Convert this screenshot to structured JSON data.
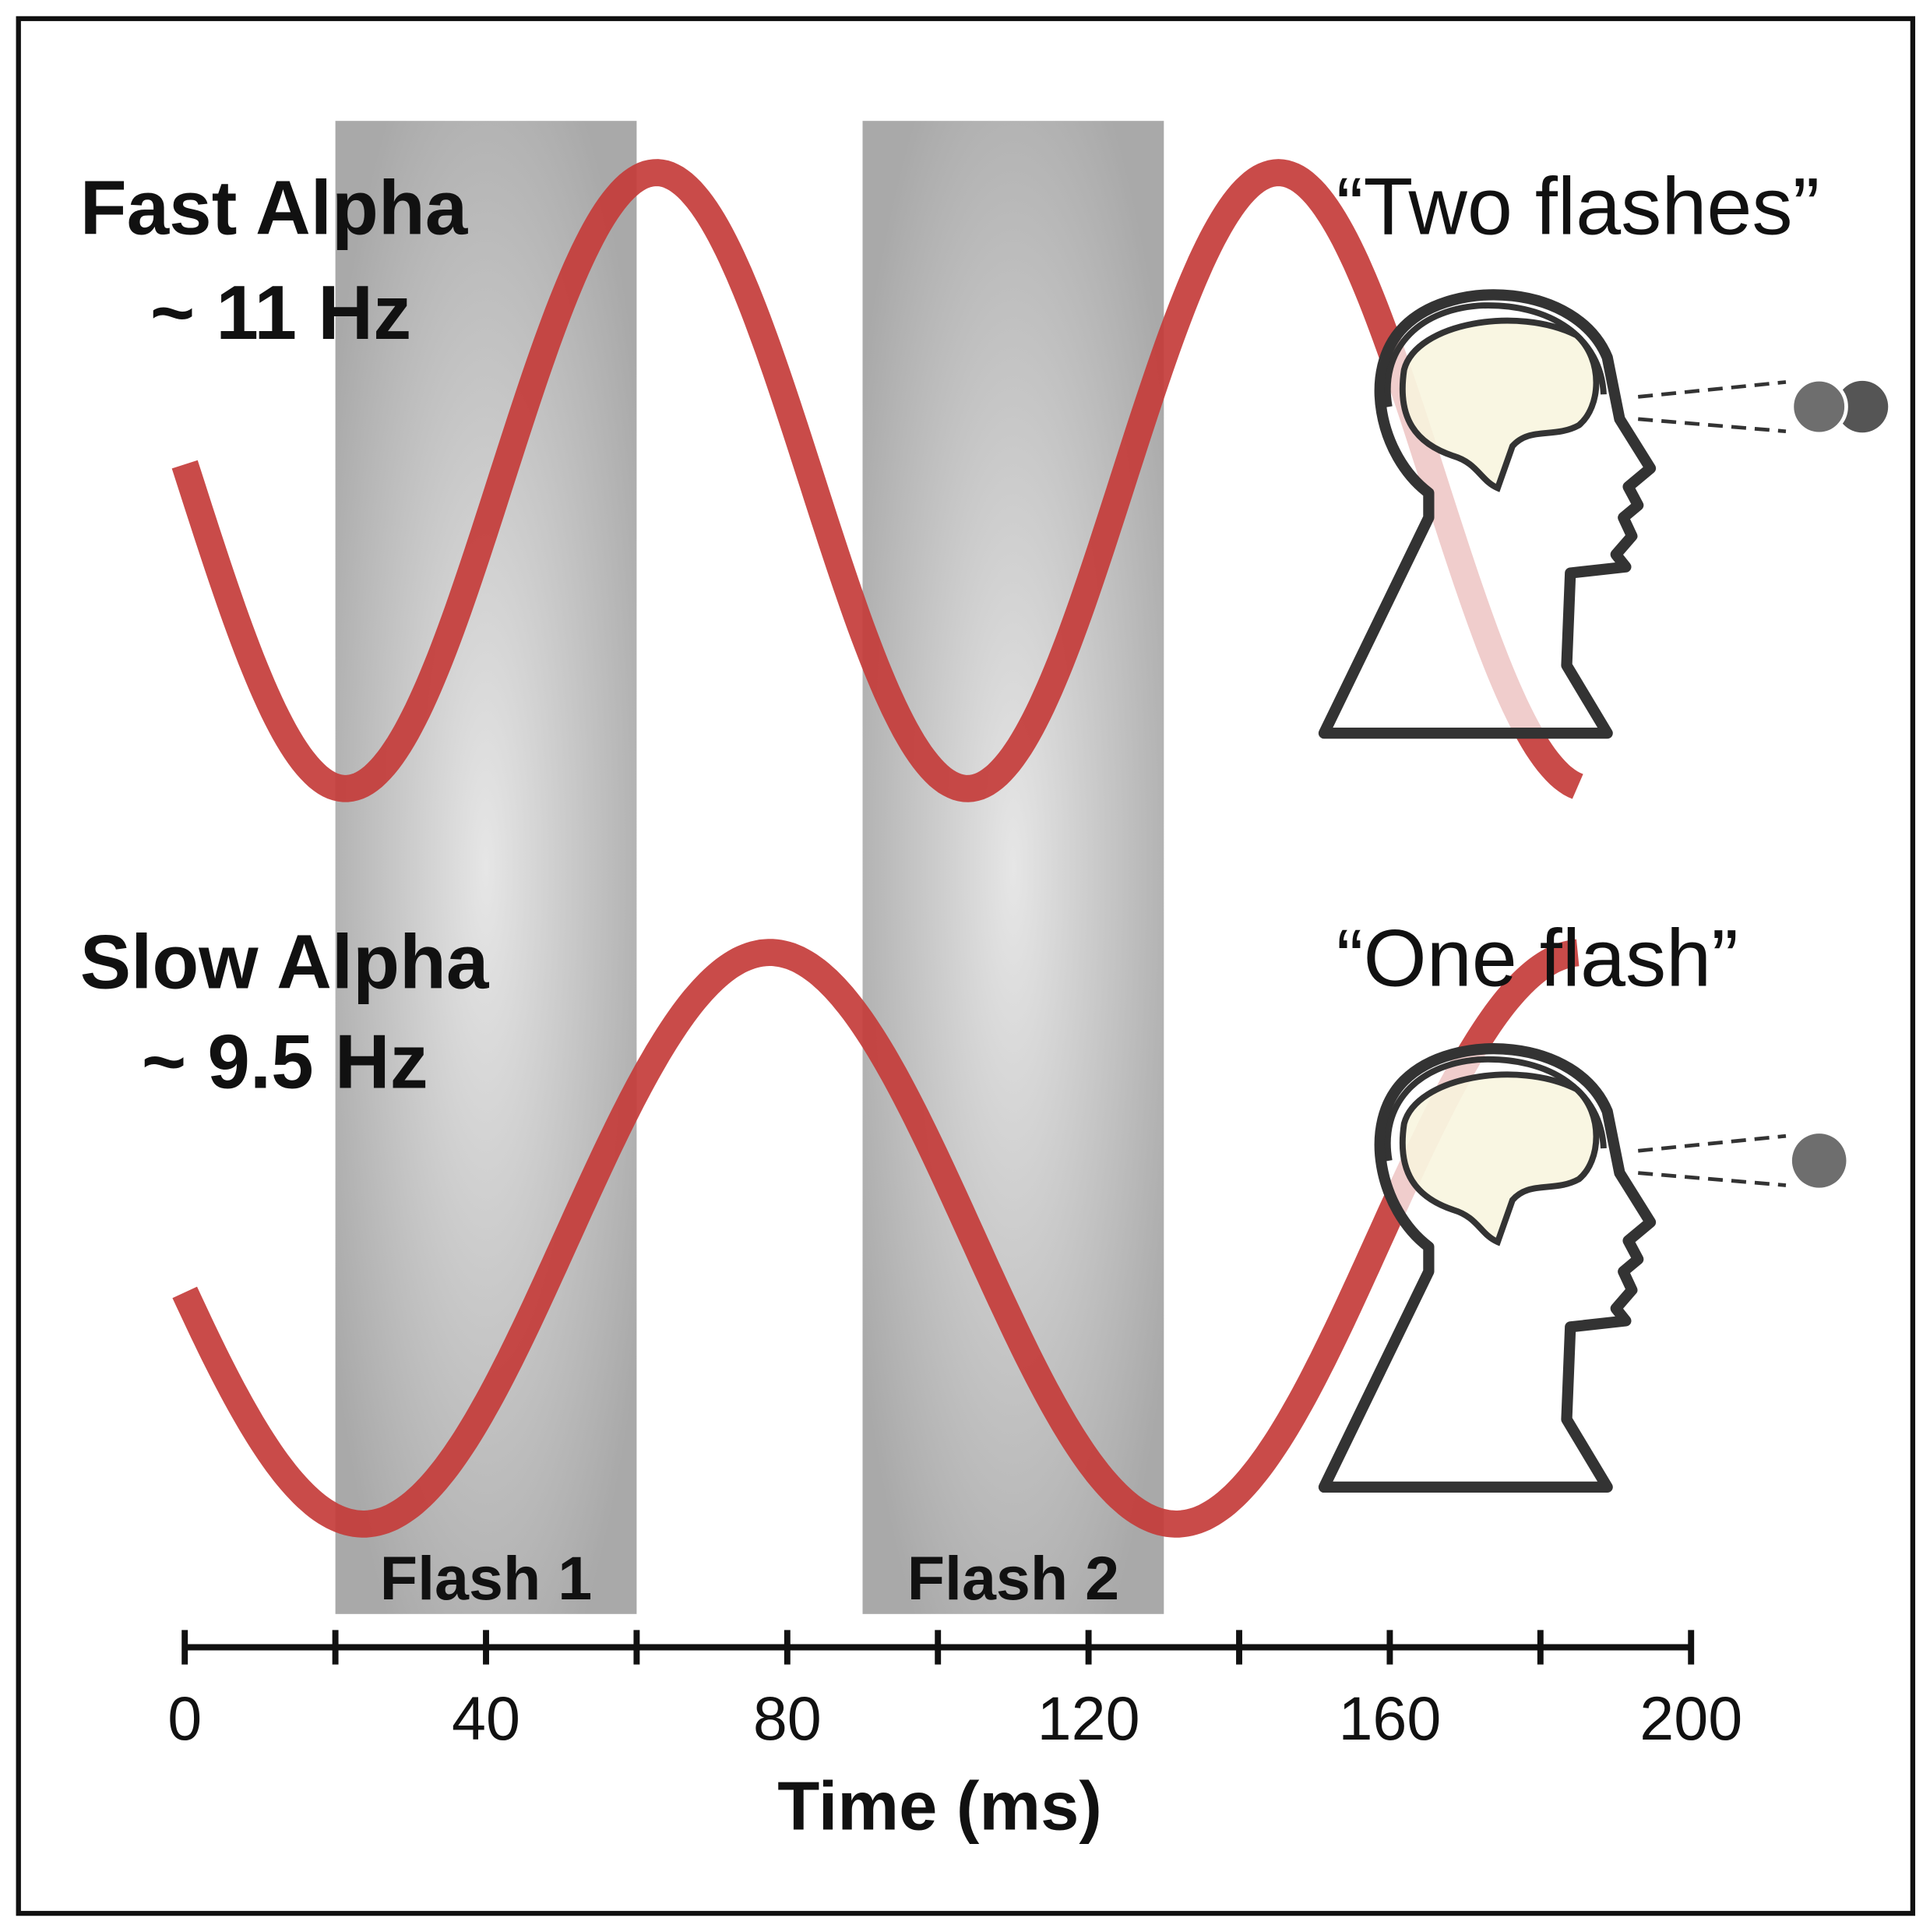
{
  "panels": [
    {
      "label": "Fast Alpha",
      "frequency": "~ 11 Hz",
      "percept": "“Two flashes”"
    },
    {
      "label": "Slow Alpha",
      "frequency": "~ 9.5 Hz",
      "percept": "“One flash”"
    }
  ],
  "flashes": [
    {
      "label": "Flash 1",
      "start": 20,
      "end": 60
    },
    {
      "label": "Flash 2",
      "start": 90,
      "end": 130
    }
  ],
  "axis": {
    "title": "Time (ms)",
    "xlim": [
      0,
      200
    ],
    "xticks": [
      0,
      40,
      80,
      120,
      160,
      200
    ],
    "xminor": [
      20,
      60,
      100,
      140,
      180
    ]
  }
}
